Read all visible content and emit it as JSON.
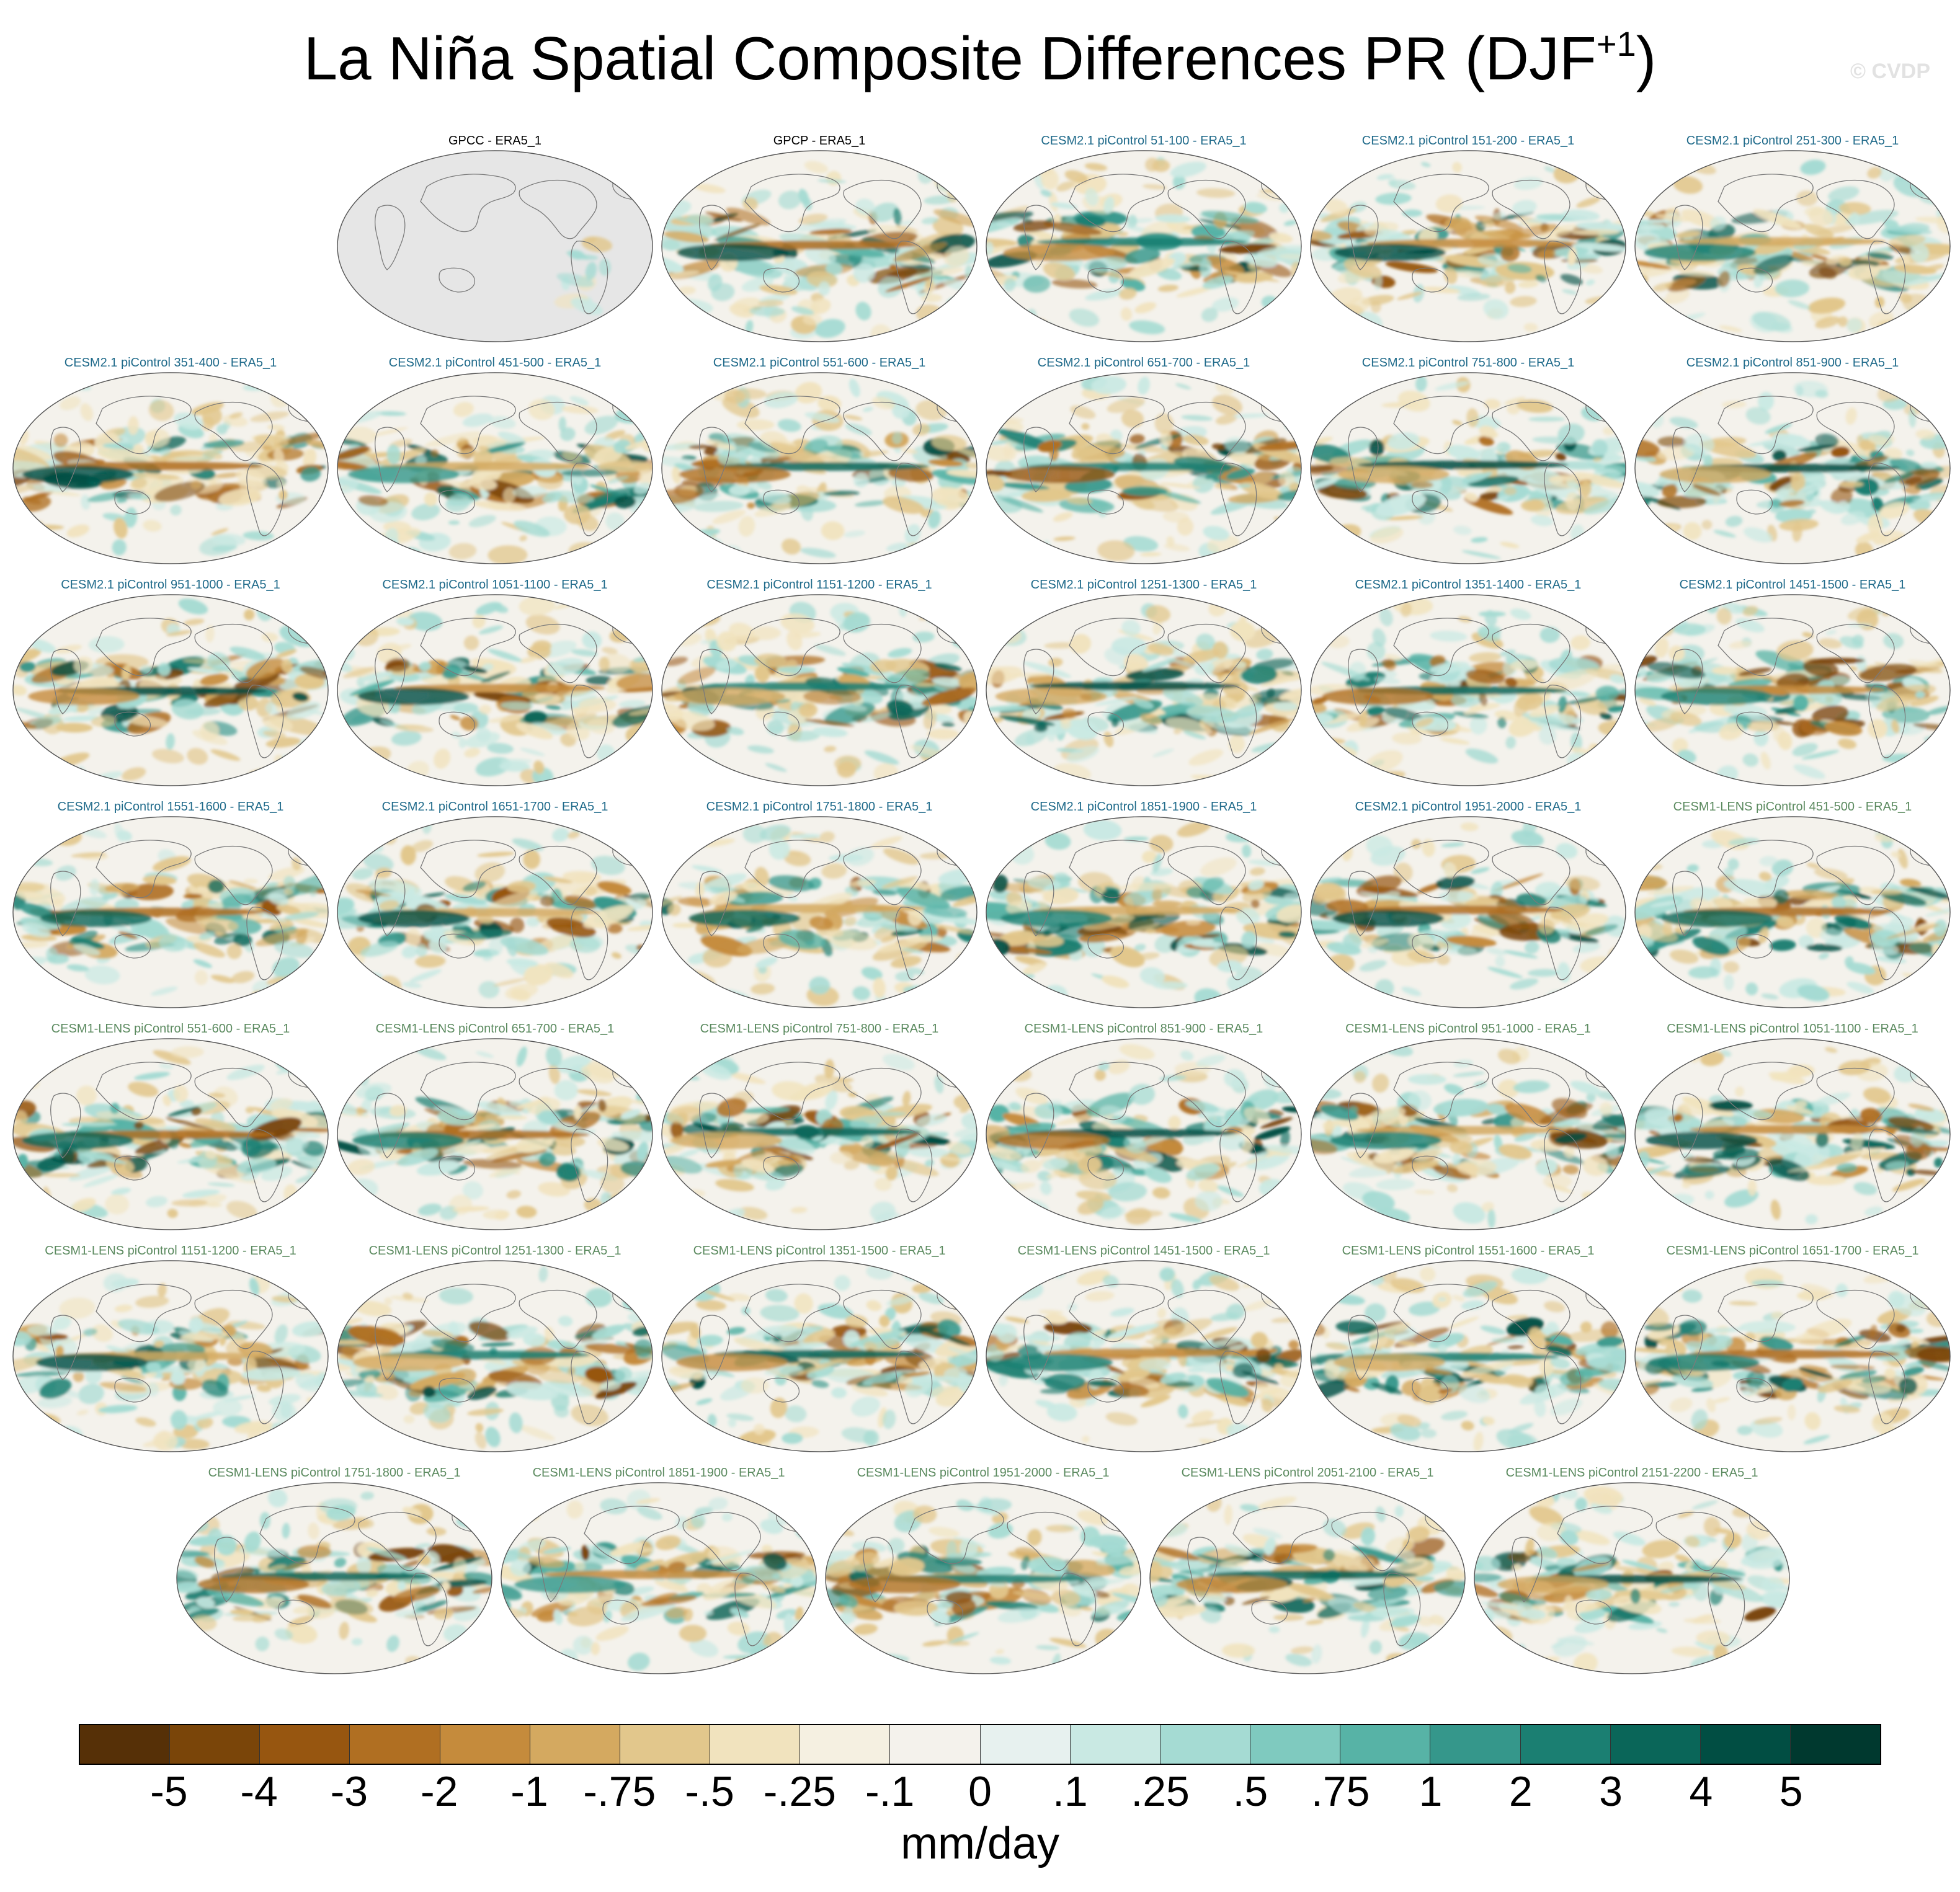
{
  "title": {
    "text": "La Niña Spatial Composite Differences PR (DJF",
    "superscript": "+1",
    "close": ")"
  },
  "watermark": "© CVDP",
  "panels": [
    {
      "label": "GPCC - ERA5_1",
      "group": "obs",
      "masked": true
    },
    {
      "label": "GPCP - ERA5_1",
      "group": "obs"
    },
    {
      "label": "CESM2.1 piControl 51-100 - ERA5_1",
      "group": "cesm2"
    },
    {
      "label": "CESM2.1 piControl 151-200 - ERA5_1",
      "group": "cesm2"
    },
    {
      "label": "CESM2.1 piControl 251-300 - ERA5_1",
      "group": "cesm2"
    },
    {
      "label": "CESM2.1 piControl 351-400 - ERA5_1",
      "group": "cesm2"
    },
    {
      "label": "CESM2.1 piControl 451-500 - ERA5_1",
      "group": "cesm2"
    },
    {
      "label": "CESM2.1 piControl 551-600 - ERA5_1",
      "group": "cesm2"
    },
    {
      "label": "CESM2.1 piControl 651-700 - ERA5_1",
      "group": "cesm2"
    },
    {
      "label": "CESM2.1 piControl 751-800 - ERA5_1",
      "group": "cesm2"
    },
    {
      "label": "CESM2.1 piControl 851-900 - ERA5_1",
      "group": "cesm2"
    },
    {
      "label": "CESM2.1 piControl 951-1000 - ERA5_1",
      "group": "cesm2"
    },
    {
      "label": "CESM2.1 piControl 1051-1100 - ERA5_1",
      "group": "cesm2"
    },
    {
      "label": "CESM2.1 piControl 1151-1200 - ERA5_1",
      "group": "cesm2"
    },
    {
      "label": "CESM2.1 piControl 1251-1300 - ERA5_1",
      "group": "cesm2"
    },
    {
      "label": "CESM2.1 piControl 1351-1400 - ERA5_1",
      "group": "cesm2"
    },
    {
      "label": "CESM2.1 piControl 1451-1500 - ERA5_1",
      "group": "cesm2"
    },
    {
      "label": "CESM2.1 piControl 1551-1600 - ERA5_1",
      "group": "cesm2"
    },
    {
      "label": "CESM2.1 piControl 1651-1700 - ERA5_1",
      "group": "cesm2"
    },
    {
      "label": "CESM2.1 piControl 1751-1800 - ERA5_1",
      "group": "cesm2"
    },
    {
      "label": "CESM2.1 piControl 1851-1900 - ERA5_1",
      "group": "cesm2"
    },
    {
      "label": "CESM2.1 piControl 1951-2000 - ERA5_1",
      "group": "cesm2"
    },
    {
      "label": "CESM1-LENS piControl 451-500 - ERA5_1",
      "group": "cesm1"
    },
    {
      "label": "CESM1-LENS piControl 551-600 - ERA5_1",
      "group": "cesm1"
    },
    {
      "label": "CESM1-LENS piControl 651-700 - ERA5_1",
      "group": "cesm1"
    },
    {
      "label": "CESM1-LENS piControl 751-800 - ERA5_1",
      "group": "cesm1"
    },
    {
      "label": "CESM1-LENS piControl 851-900 - ERA5_1",
      "group": "cesm1"
    },
    {
      "label": "CESM1-LENS piControl 951-1000 - ERA5_1",
      "group": "cesm1"
    },
    {
      "label": "CESM1-LENS piControl 1051-1100 - ERA5_1",
      "group": "cesm1"
    },
    {
      "label": "CESM1-LENS piControl 1151-1200 - ERA5_1",
      "group": "cesm1"
    },
    {
      "label": "CESM1-LENS piControl 1251-1300 - ERA5_1",
      "group": "cesm1"
    },
    {
      "label": "CESM1-LENS piControl 1351-1500 - ERA5_1",
      "group": "cesm1"
    },
    {
      "label": "CESM1-LENS piControl 1451-1500 - ERA5_1",
      "group": "cesm1"
    },
    {
      "label": "CESM1-LENS piControl 1551-1600 - ERA5_1",
      "group": "cesm1"
    },
    {
      "label": "CESM1-LENS piControl 1651-1700 - ERA5_1",
      "group": "cesm1"
    },
    {
      "label": "CESM1-LENS piControl 1751-1800 - ERA5_1",
      "group": "cesm1"
    },
    {
      "label": "CESM1-LENS piControl 1851-1900 - ERA5_1",
      "group": "cesm1"
    },
    {
      "label": "CESM1-LENS piControl 1951-2000 - ERA5_1",
      "group": "cesm1"
    },
    {
      "label": "CESM1-LENS piControl 2051-2100 - ERA5_1",
      "group": "cesm1"
    },
    {
      "label": "CESM1-LENS piControl 2151-2200 - ERA5_1",
      "group": "cesm1"
    }
  ],
  "colorbar": {
    "colors": [
      "#563007",
      "#7a4509",
      "#975610",
      "#b06f22",
      "#c58b3c",
      "#d4a960",
      "#e2c78c",
      "#f1e3be",
      "#f5f0e1",
      "#f4f2ec",
      "#e7f1ef",
      "#c9e9e3",
      "#a5dbd3",
      "#7fcabf",
      "#57b3a6",
      "#35978b",
      "#1b7f72",
      "#0a6659",
      "#014e43",
      "#00392f"
    ],
    "tick_labels": [
      "-5",
      "-4",
      "-3",
      "-2",
      "-1",
      "-.75",
      "-.5",
      "-.25",
      "-.1",
      "0",
      ".1",
      ".25",
      ".5",
      ".75",
      "1",
      "2",
      "3",
      "4",
      "5"
    ],
    "units": "mm/day"
  }
}
